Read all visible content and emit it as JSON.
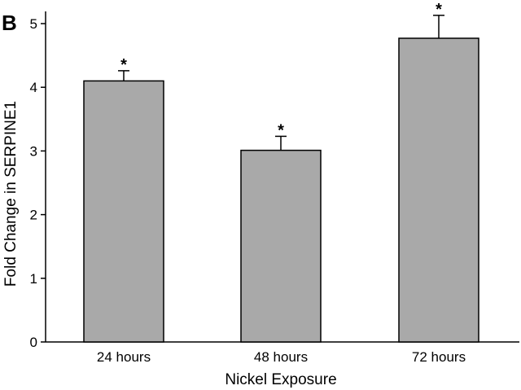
{
  "panel_label": "B",
  "chart_data": {
    "type": "bar",
    "categories": [
      "24 hours",
      "48 hours",
      "72 hours"
    ],
    "values": [
      4.1,
      3.01,
      4.77
    ],
    "error": [
      0.16,
      0.22,
      0.36
    ],
    "annotations": [
      "*",
      "*",
      "*"
    ],
    "xlabel": "Nickel Exposure",
    "ylabel": "Fold Change in SERPINE1",
    "ylim": [
      0,
      5
    ],
    "yticks": [
      0,
      1,
      2,
      3,
      4,
      5
    ],
    "grid": false,
    "legend": "none",
    "bar_color": "#a9a9a9",
    "edge_color": "#000000"
  }
}
